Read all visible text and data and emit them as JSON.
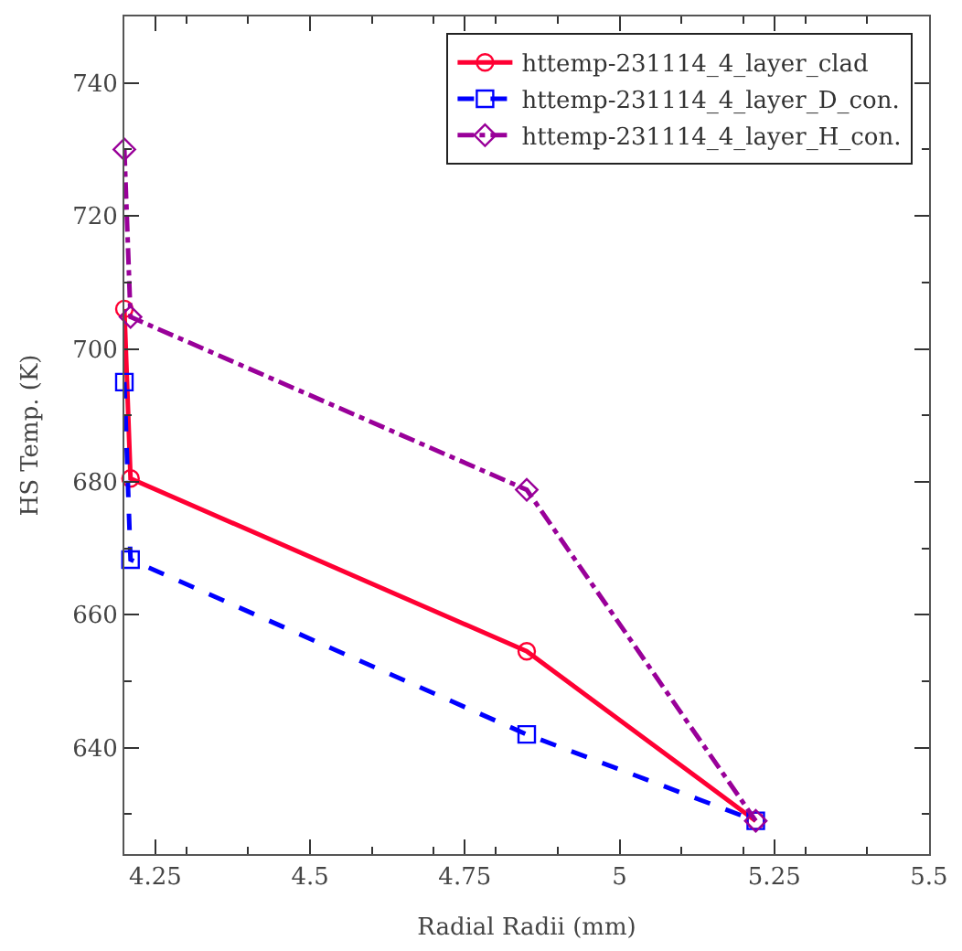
{
  "chart_data": {
    "type": "line",
    "xlabel": "Radial Radii (mm)",
    "ylabel": "HS Temp. (K)",
    "xlim": [
      4.2,
      5.5
    ],
    "xticks": [
      4.25,
      4.5,
      4.75,
      5,
      5.25,
      5.5
    ],
    "ylim": [
      624,
      750
    ],
    "yticks": [
      640,
      660,
      680,
      700,
      720,
      740
    ],
    "x": [
      4.2,
      4.21,
      4.85,
      5.22
    ],
    "legend": "top right",
    "series": [
      {
        "name": "httemp-231114_4_layer_clad",
        "color": "#ff0033",
        "values": [
          706,
          680.5,
          654.5,
          629
        ],
        "marker": "circle",
        "line_style": "solid"
      },
      {
        "name": "httemp-231114_4_layer_D_con.",
        "color": "#0000ff",
        "values": [
          695,
          668.3,
          642,
          629
        ],
        "marker": "square",
        "line_style": "dashed"
      },
      {
        "name": "httemp-231114_4_layer_H_con.",
        "color": "#990099",
        "values": [
          730,
          704.8,
          678.8,
          629
        ],
        "marker": "diamond",
        "line_style": "dashdot"
      }
    ]
  }
}
